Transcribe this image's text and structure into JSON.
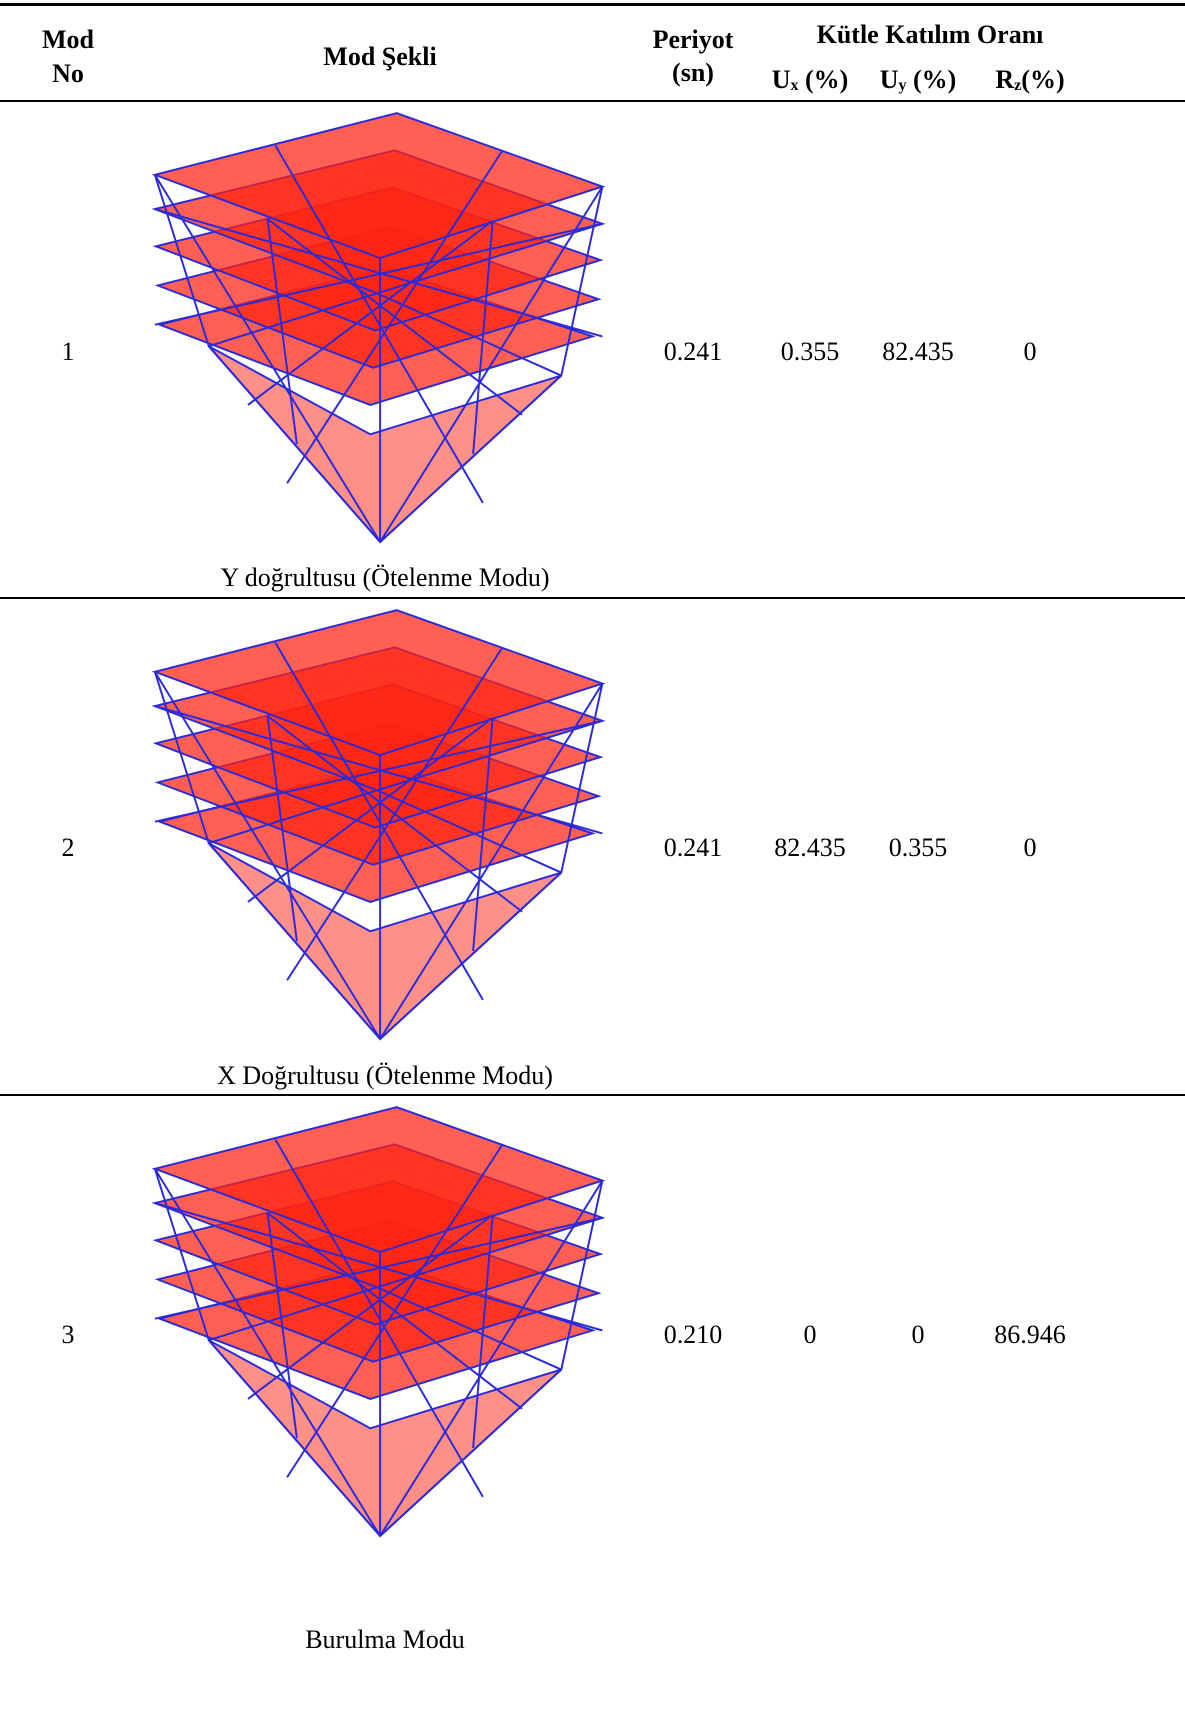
{
  "header": {
    "mod_no": [
      "Mod",
      "No"
    ],
    "mod_sekli": "Mod Şekli",
    "periyot": [
      "Periyot",
      "(sn)"
    ],
    "kutle": "Kütle Katılım Oranı",
    "columns": [
      {
        "symbol": "U",
        "sub": "x",
        "suffix": "(%)"
      },
      {
        "symbol": "U",
        "sub": "y",
        "suffix": "(%)"
      },
      {
        "symbol": "R",
        "sub": "z",
        "suffix": "(%)"
      }
    ]
  },
  "table": {
    "rows": [
      {
        "no": "1",
        "caption": "Y doğrultusu (Ötelenme Modu)",
        "period": "0.241",
        "ux": "0.355",
        "uy": "82.435",
        "rz": "0"
      },
      {
        "no": "2",
        "caption": "X Doğrultusu (Ötelenme Modu)",
        "period": "0.241",
        "ux": "82.435",
        "uy": "0.355",
        "rz": "0"
      },
      {
        "no": "3",
        "caption": "Burulma Modu",
        "period": "0.210",
        "ux": "0",
        "uy": "0",
        "rz": "86.946"
      }
    ]
  }
}
